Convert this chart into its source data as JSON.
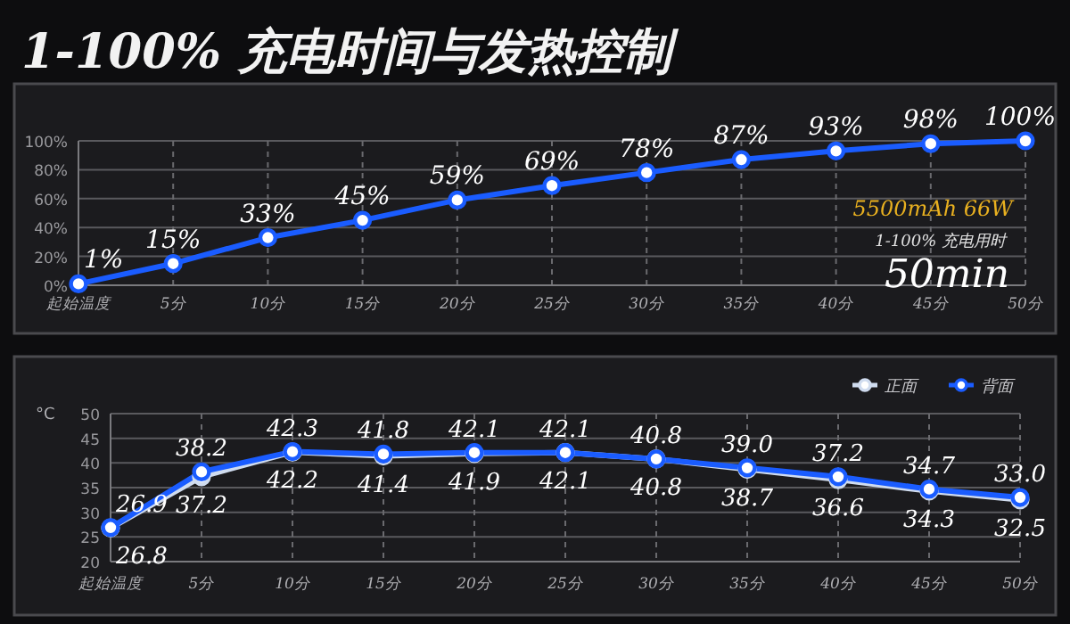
{
  "chart_data": [
    {
      "type": "line",
      "title": "1-100% 充电时间与发热控制",
      "categories": [
        "起始温度",
        "5分",
        "10分",
        "15分",
        "20分",
        "25分",
        "30分",
        "35分",
        "40分",
        "45分",
        "50分"
      ],
      "series": [
        {
          "color": "#1a5cff",
          "values": [
            1,
            15,
            33,
            45,
            59,
            69,
            78,
            87,
            93,
            98,
            100
          ],
          "value_labels": [
            "1%",
            "15%",
            "33%",
            "45%",
            "59%",
            "69%",
            "78%",
            "87%",
            "93%",
            "98%",
            "100%"
          ]
        }
      ],
      "ylim": [
        0,
        100
      ],
      "yticks": [
        {
          "value": 0,
          "label": "0%"
        },
        {
          "value": 20,
          "label": "20%"
        },
        {
          "value": 40,
          "label": "40%"
        },
        {
          "value": 60,
          "label": "60%"
        },
        {
          "value": 80,
          "label": "80%"
        },
        {
          "value": 100,
          "label": "100%"
        }
      ],
      "grid": true,
      "marker": "circle",
      "annotations": [
        "5500mAh  66W",
        "1-100% 充电用时",
        "50min"
      ]
    },
    {
      "type": "line",
      "ylabel": "°C",
      "categories": [
        "起始温度",
        "5分",
        "10分",
        "15分",
        "20分",
        "25分",
        "30分",
        "35分",
        "40分",
        "45分",
        "50分"
      ],
      "series": [
        {
          "name": "正面",
          "color": "#d0dcef",
          "values": [
            26.8,
            37.2,
            42.2,
            41.4,
            41.9,
            42.1,
            40.8,
            38.7,
            36.6,
            34.3,
            32.5
          ],
          "value_labels": [
            "26.8",
            "37.2",
            "42.2",
            "41.4",
            "41.9",
            "42.1",
            "40.8",
            "38.7",
            "36.6",
            "34.3",
            "32.5"
          ]
        },
        {
          "name": "背面",
          "color": "#1a5cff",
          "values": [
            26.9,
            38.2,
            42.3,
            41.8,
            42.1,
            42.1,
            40.8,
            39.0,
            37.2,
            34.7,
            33.0
          ],
          "value_labels": [
            "26.9",
            "38.2",
            "42.3",
            "41.8",
            "42.1",
            "42.1",
            "40.8",
            "39.0",
            "37.2",
            "34.7",
            "33.0"
          ]
        }
      ],
      "ylim": [
        20,
        50
      ],
      "yticks": [
        20,
        25,
        30,
        35,
        40,
        45,
        50
      ],
      "grid": true,
      "marker": "circle",
      "legend": "top right"
    }
  ]
}
